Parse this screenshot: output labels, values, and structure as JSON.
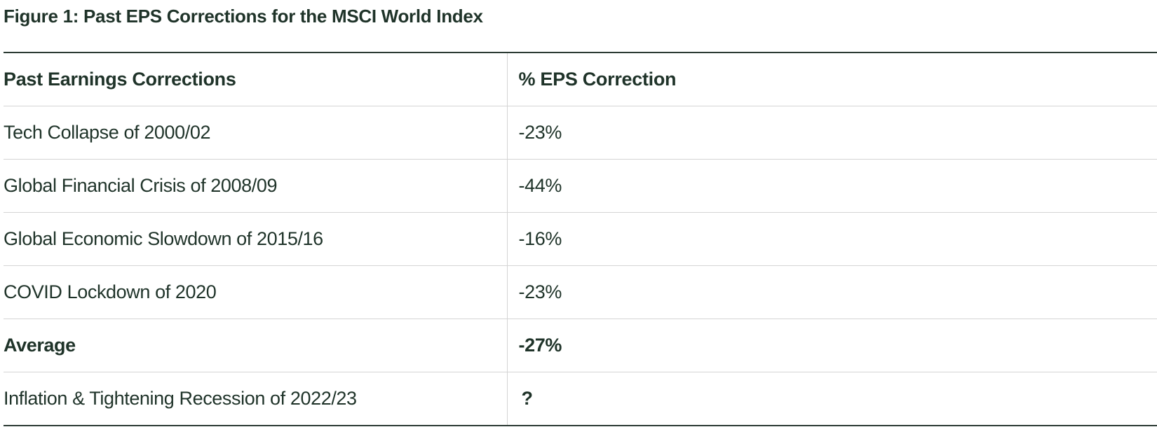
{
  "figure": {
    "title": "Figure 1: Past EPS Corrections for the MSCI World Index"
  },
  "table": {
    "headers": [
      "Past Earnings Corrections",
      "% EPS Correction"
    ],
    "rows": [
      {
        "label": "Tech Collapse of 2000/02",
        "value": "-23%"
      },
      {
        "label": "Global Financial Crisis of 2008/09",
        "value": "-44%"
      },
      {
        "label": "Global Economic Slowdown of 2015/16",
        "value": "-16%"
      },
      {
        "label": "COVID Lockdown of 2020",
        "value": "-23%"
      },
      {
        "label": "Average",
        "value": "-27%"
      },
      {
        "label": "Inflation & Tightening Recession of 2022/23",
        "value": "?"
      }
    ]
  },
  "colors": {
    "text": "#1f3329",
    "rule_dark": "#2b3a33",
    "rule_light": "#d4d4d4",
    "background": "#ffffff"
  }
}
